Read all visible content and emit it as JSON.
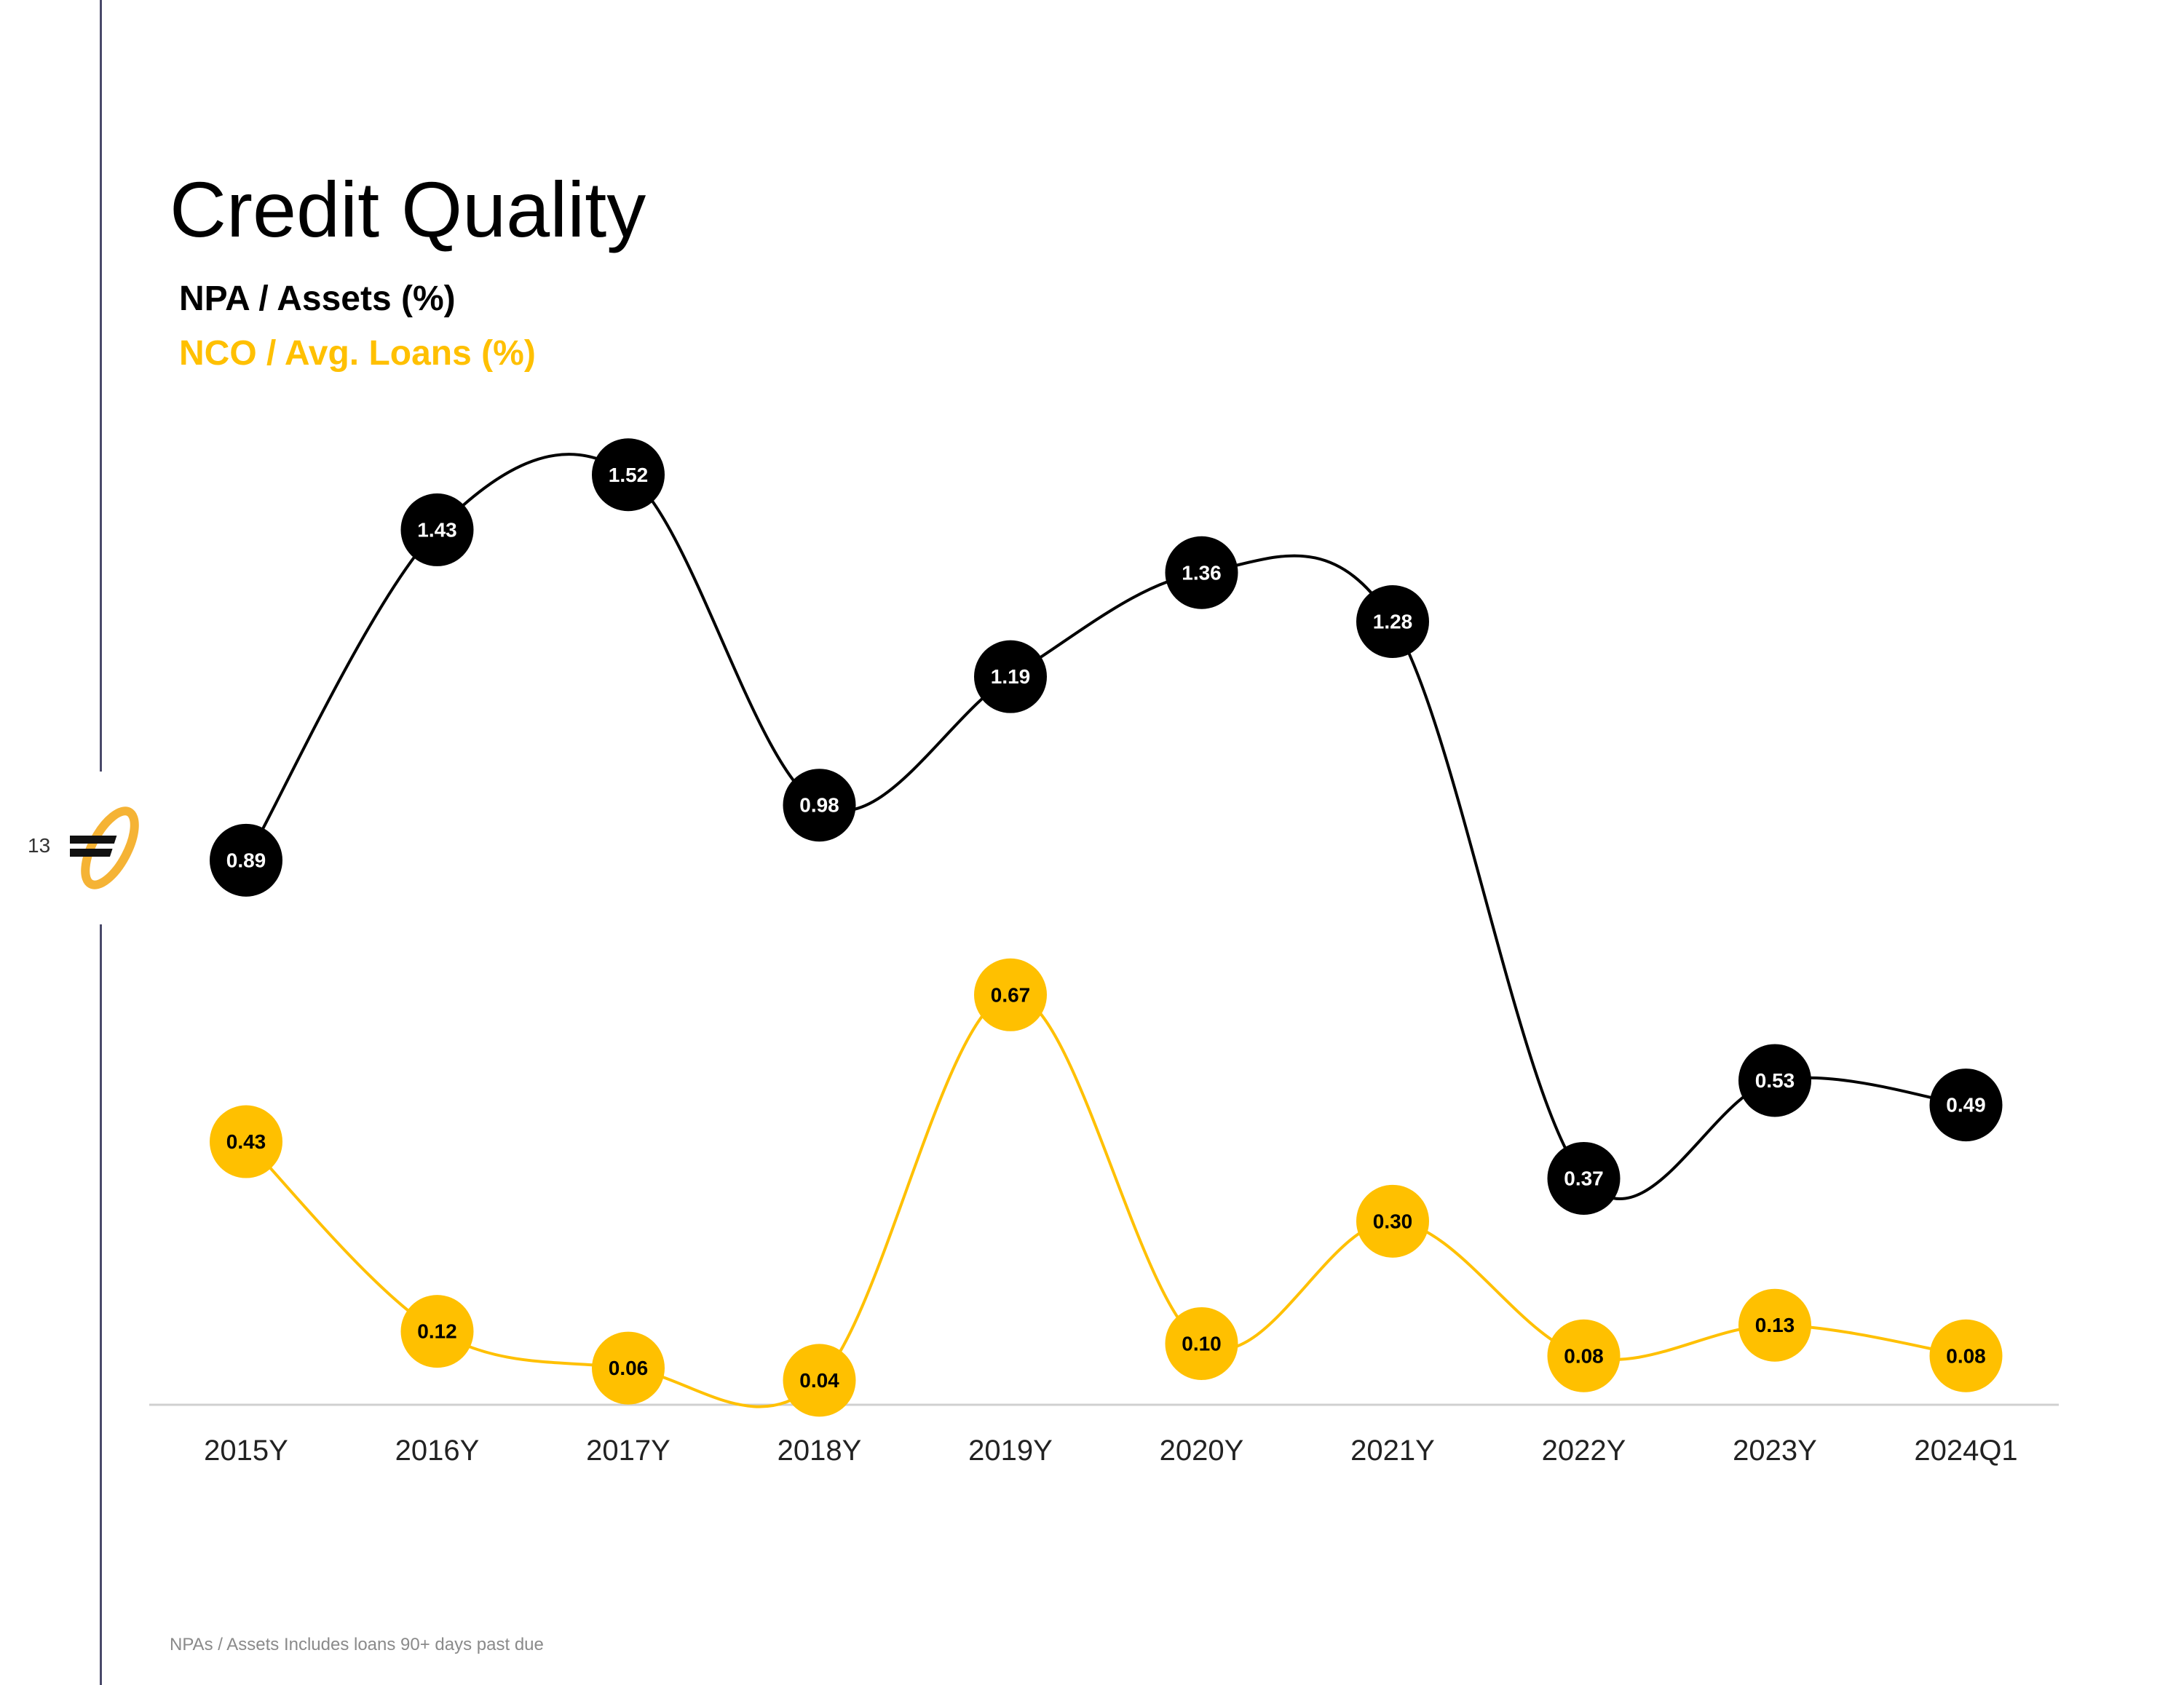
{
  "page": {
    "number": "13",
    "title": "Credit Quality",
    "footnote": "NPAs / Assets Includes loans 90+ days past due"
  },
  "colors": {
    "npa": "#000000",
    "nco": "#FFC000",
    "axis": "#d0d0d0",
    "rule": "#4a4a6a"
  },
  "icons": {
    "logo": "brand-logo-icon"
  },
  "chart_data": {
    "type": "line",
    "title": "",
    "xlabel": "",
    "ylabel": "",
    "categories": [
      "2015Y",
      "2016Y",
      "2017Y",
      "2018Y",
      "2019Y",
      "2020Y",
      "2021Y",
      "2022Y",
      "2023Y",
      "2024Q1"
    ],
    "series": [
      {
        "name": "NPA / Assets (%)",
        "color": "#000000",
        "label_color": "#ffffff",
        "values": [
          0.89,
          1.43,
          1.52,
          0.98,
          1.19,
          1.36,
          1.28,
          0.37,
          0.53,
          0.49
        ],
        "labels": [
          "0.89",
          "1.43",
          "1.52",
          "0.98",
          "1.19",
          "1.36",
          "1.28",
          "0.37",
          "0.53",
          "0.49"
        ]
      },
      {
        "name": "NCO / Avg. Loans (%)",
        "color": "#FFC000",
        "label_color": "#000000",
        "values": [
          0.43,
          0.12,
          0.06,
          0.04,
          0.67,
          0.1,
          0.3,
          0.08,
          0.13,
          0.08
        ],
        "labels": [
          "0.43",
          "0.12",
          "0.06",
          "0.04",
          "0.67",
          "0.10",
          "0.30",
          "0.08",
          "0.13",
          "0.08"
        ]
      }
    ],
    "ylim": [
      0,
      1.6
    ],
    "grid": false,
    "legend": "top-left",
    "smooth": true
  }
}
